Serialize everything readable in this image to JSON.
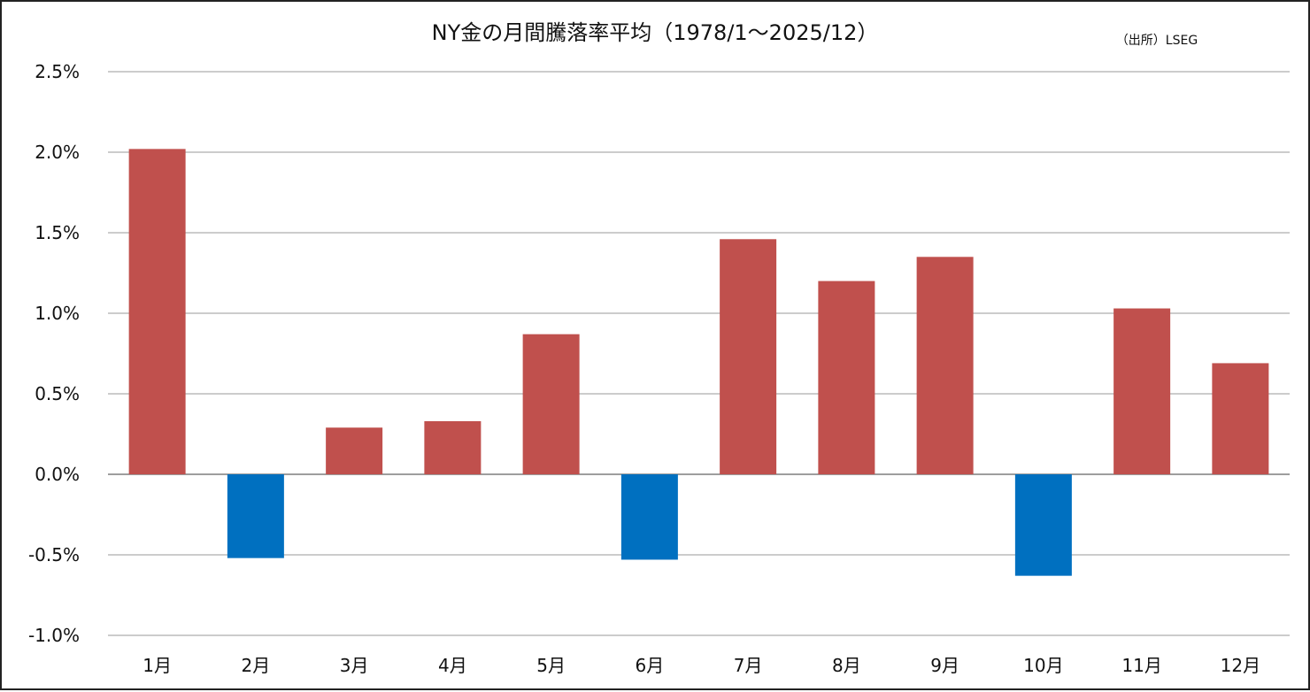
{
  "chart_data": {
    "type": "bar",
    "title": "NY金の月間騰落率平均（1978/1～2025/12）",
    "source": "（出所）LSEG",
    "xlabel": "",
    "ylabel": "",
    "categories": [
      "1月",
      "2月",
      "3月",
      "4月",
      "5月",
      "6月",
      "7月",
      "8月",
      "9月",
      "10月",
      "11月",
      "12月"
    ],
    "values": [
      2.02,
      -0.52,
      0.29,
      0.33,
      0.87,
      -0.53,
      1.46,
      1.2,
      1.35,
      -0.63,
      1.03,
      0.69
    ],
    "unit": "%",
    "ylim": [
      -1.0,
      2.5
    ],
    "yticks": [
      "2.5%",
      "2.0%",
      "1.5%",
      "1.0%",
      "0.5%",
      "0.0%",
      "-0.5%",
      "-1.0%"
    ],
    "ytick_values": [
      2.5,
      2.0,
      1.5,
      1.0,
      0.5,
      0.0,
      -0.5,
      -1.0
    ],
    "grid": true,
    "legend": "none",
    "colors": {
      "positive": "#c0504d",
      "negative": "#0070c0",
      "grid": "#9a9a9a",
      "text": "#111111"
    }
  }
}
